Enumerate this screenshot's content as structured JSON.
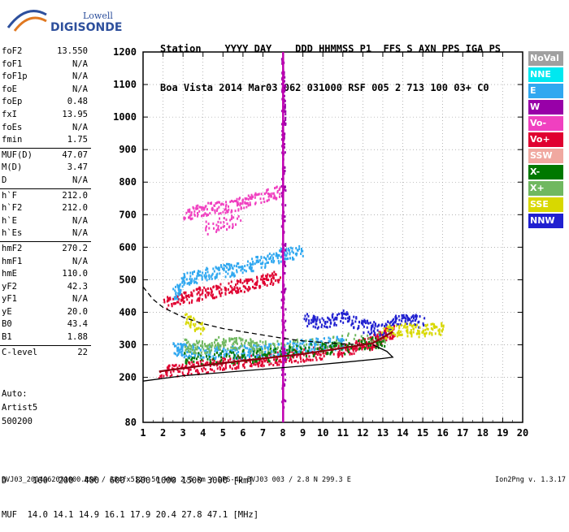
{
  "logo": {
    "top": "Lowell",
    "main": "DIGISONDE"
  },
  "header": {
    "line1": "Station    YYYY DAY    DDD HHMMSS P1  FFS S AXN PPS IGA PS",
    "line2": "Boa Vista 2014 Mar03 062 031000 RSF 005 2 713 100 03+ C0"
  },
  "params": [
    {
      "k": "foF2",
      "v": "13.550"
    },
    {
      "k": "foF1",
      "v": "N/A"
    },
    {
      "k": "foF1p",
      "v": "N/A"
    },
    {
      "k": "foE",
      "v": "N/A"
    },
    {
      "k": "foEp",
      "v": "0.48"
    },
    {
      "k": "fxI",
      "v": "13.95"
    },
    {
      "k": "foEs",
      "v": "N/A"
    },
    {
      "k": "fmin",
      "v": "1.75"
    },
    {
      "k": "MUF(D)",
      "v": "47.07",
      "sep": true
    },
    {
      "k": "M(D)",
      "v": "3.47"
    },
    {
      "k": "D",
      "v": "N/A"
    },
    {
      "k": "h`F",
      "v": "212.0",
      "sep": true
    },
    {
      "k": "h`F2",
      "v": "212.0"
    },
    {
      "k": "h`E",
      "v": "N/A"
    },
    {
      "k": "h`Es",
      "v": "N/A"
    },
    {
      "k": "hmF2",
      "v": "270.2",
      "sep": true
    },
    {
      "k": "hmF1",
      "v": "N/A"
    },
    {
      "k": "hmE",
      "v": "110.0"
    },
    {
      "k": "yF2",
      "v": "42.3"
    },
    {
      "k": "yF1",
      "v": "N/A"
    },
    {
      "k": "yE",
      "v": "20.0"
    },
    {
      "k": "B0",
      "v": "43.4"
    },
    {
      "k": "B1",
      "v": "1.88"
    },
    {
      "k": "C-level",
      "v": "22",
      "sep": true
    }
  ],
  "auto": {
    "label": "Auto:",
    "artist": "Artist5",
    "code": "500200"
  },
  "legend": [
    {
      "label": "NoVal",
      "color": "#a0a0a0"
    },
    {
      "label": "NNE",
      "color": "#00e8f0"
    },
    {
      "label": "E",
      "color": "#30a8f0"
    },
    {
      "label": "W",
      "color": "#9800a8"
    },
    {
      "label": "Vo-",
      "color": "#f040c0"
    },
    {
      "label": "Vo+",
      "color": "#e00030"
    },
    {
      "label": "SSW",
      "color": "#f0a8a0"
    },
    {
      "label": "X-",
      "color": "#007800"
    },
    {
      "label": "X+",
      "color": "#70b860"
    },
    {
      "label": "SSE",
      "color": "#d8d800"
    },
    {
      "label": "NNW",
      "color": "#2020d0"
    }
  ],
  "footer": {
    "line1": "D     100  200  400  600  800 1000 1500 3000 [km]",
    "line2": "MUF  14.0 14.1 14.9 16.1 17.9 20.4 27.8 47.1 [MHz]",
    "line3": "BVJ03_2014062031000.RSF / 384fx512h 50 kHz 2.5 km / DPS-4D BVJ03 003 / 2.8 N 299.3 E",
    "version": "Ion2Png v. 1.3.17"
  },
  "chart_data": {
    "type": "scatter",
    "xlim": [
      1,
      20
    ],
    "ylim": [
      80,
      1200
    ],
    "xticks": [
      1,
      2,
      3,
      4,
      5,
      6,
      7,
      8,
      9,
      10,
      11,
      12,
      13,
      14,
      15,
      16,
      17,
      18,
      19,
      20
    ],
    "yticks": [
      80,
      200,
      300,
      400,
      500,
      600,
      700,
      800,
      900,
      1000,
      1100,
      1200
    ],
    "grid": true,
    "series": [
      {
        "color": "#e00030",
        "points": [
          [
            1.8,
            218
          ],
          [
            3,
            228
          ],
          [
            4,
            236
          ],
          [
            5,
            244
          ],
          [
            6,
            252
          ],
          [
            7,
            258
          ],
          [
            8,
            264
          ],
          [
            9,
            272
          ],
          [
            10,
            280
          ],
          [
            11,
            290
          ],
          [
            12,
            300
          ],
          [
            12.5,
            312
          ],
          [
            13,
            330
          ],
          [
            13.5,
            345
          ]
        ]
      },
      {
        "color": "#e00030",
        "points": [
          [
            2,
            428
          ],
          [
            3,
            448
          ],
          [
            4,
            462
          ],
          [
            5,
            474
          ],
          [
            6,
            486
          ],
          [
            7,
            498
          ],
          [
            7.8,
            512
          ]
        ]
      },
      {
        "color": "#30a8f0",
        "points": [
          [
            2.5,
            290
          ],
          [
            3,
            285
          ],
          [
            4,
            282
          ],
          [
            5,
            280
          ],
          [
            6,
            280
          ],
          [
            7,
            285
          ],
          [
            8,
            290
          ],
          [
            9,
            300
          ],
          [
            10,
            305
          ],
          [
            11,
            310
          ]
        ]
      },
      {
        "color": "#30a8f0",
        "points": [
          [
            2.5,
            450
          ],
          [
            3,
            500
          ],
          [
            4,
            520
          ],
          [
            5,
            530
          ],
          [
            6,
            540
          ],
          [
            7,
            560
          ],
          [
            8,
            580
          ],
          [
            9,
            590
          ]
        ]
      },
      {
        "color": "#2020d0",
        "points": [
          [
            9,
            380
          ],
          [
            10,
            370
          ],
          [
            11,
            390
          ],
          [
            12,
            360
          ],
          [
            13,
            350
          ],
          [
            14,
            390
          ],
          [
            15,
            370
          ]
        ]
      },
      {
        "color": "#d8d800",
        "points": [
          [
            13,
            340
          ],
          [
            14,
            350
          ],
          [
            15,
            345
          ],
          [
            16,
            355
          ],
          [
            3,
            390
          ],
          [
            4,
            345
          ]
        ]
      },
      {
        "color": "#f040c0",
        "points": [
          [
            3,
            700
          ],
          [
            4,
            720
          ],
          [
            5,
            725
          ],
          [
            6,
            740
          ],
          [
            7,
            760
          ],
          [
            8,
            775
          ],
          [
            4,
            660
          ],
          [
            6,
            690
          ]
        ]
      },
      {
        "color": "#70b860",
        "points": [
          [
            3,
            300
          ],
          [
            4,
            295
          ],
          [
            5,
            310
          ],
          [
            6,
            305
          ],
          [
            7,
            295
          ],
          [
            10,
            310
          ],
          [
            13,
            330
          ]
        ]
      },
      {
        "color": "#007800",
        "points": [
          [
            3,
            260
          ],
          [
            5,
            265
          ],
          [
            7,
            270
          ],
          [
            9,
            285
          ],
          [
            11,
            295
          ],
          [
            13,
            315
          ]
        ]
      },
      {
        "color": "#9800a8",
        "points": [
          [
            8,
            120
          ],
          [
            8,
            300
          ],
          [
            8,
            600
          ],
          [
            8,
            900
          ],
          [
            8,
            1060
          ],
          [
            8,
            1180
          ]
        ]
      }
    ],
    "lines": [
      {
        "name": "",
        "style": "solid",
        "color": "#000",
        "points": [
          [
            1,
            190
          ],
          [
            3,
            205
          ],
          [
            5,
            215
          ],
          [
            7,
            225
          ],
          [
            9,
            235
          ],
          [
            11,
            246
          ],
          [
            13,
            258
          ],
          [
            13.5,
            262
          ],
          [
            13.2,
            280
          ],
          [
            12.5,
            300
          ]
        ]
      },
      {
        "name": "",
        "style": "dashed",
        "color": "#000",
        "points": [
          [
            1,
            478
          ],
          [
            1.5,
            440
          ],
          [
            2,
            415
          ],
          [
            2.5,
            400
          ],
          [
            3,
            385
          ],
          [
            4,
            365
          ],
          [
            5,
            350
          ],
          [
            6,
            340
          ],
          [
            7,
            330
          ],
          [
            8,
            320
          ],
          [
            9,
            312
          ],
          [
            10,
            307
          ],
          [
            11,
            303
          ],
          [
            12,
            300
          ]
        ]
      },
      {
        "name": "",
        "style": "solid",
        "color": "#8a0010",
        "points": [
          [
            1.8,
            218
          ],
          [
            3,
            228
          ],
          [
            5,
            244
          ],
          [
            7,
            258
          ],
          [
            9,
            272
          ],
          [
            11,
            290
          ],
          [
            12.5,
            305
          ],
          [
            13.5,
            340
          ]
        ]
      }
    ]
  }
}
